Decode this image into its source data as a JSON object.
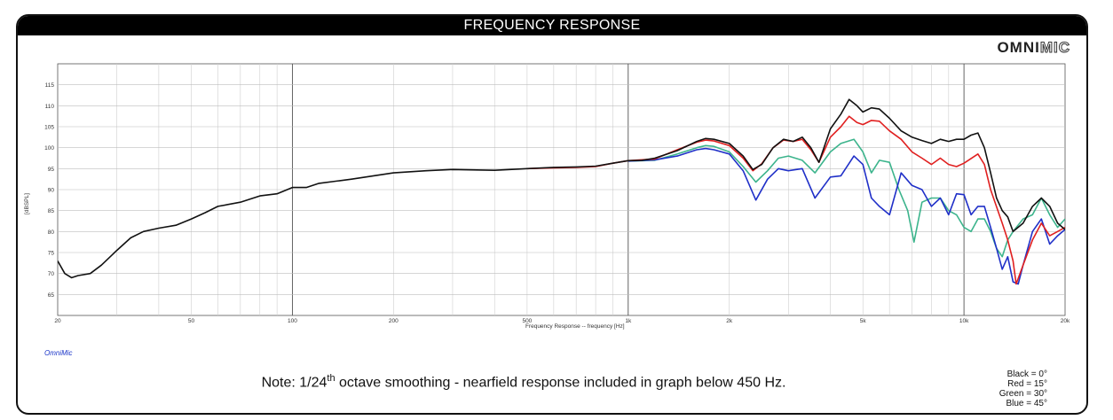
{
  "header": {
    "title": "FREQUENCY RESPONSE"
  },
  "logo": {
    "part_a": "OMNI",
    "part_b": "MIC"
  },
  "brand_label": "OmniMic",
  "note": {
    "pre": "Note: 1/24",
    "sup": "th",
    "post": " octave smoothing - nearfield response included in graph below 450 Hz."
  },
  "legend_lines": [
    "Black = 0°",
    "Red = 15°",
    "Green = 30°",
    "Blue = 45°"
  ],
  "colors": {
    "black": "#111111",
    "red": "#e02020",
    "green": "#3cb48c",
    "blue": "#2030c8"
  },
  "chart_data": {
    "type": "line",
    "title": "",
    "xlabel": "Frequency Response -- frequency [Hz]",
    "ylabel": "[dBSPL]",
    "x_scale": "log",
    "xlim": [
      20,
      20000
    ],
    "ylim": [
      60,
      120
    ],
    "grid": true,
    "x_ticks": [
      {
        "value": 20,
        "label": "20"
      },
      {
        "value": 50,
        "label": "50"
      },
      {
        "value": 100,
        "label": "100"
      },
      {
        "value": 200,
        "label": "200"
      },
      {
        "value": 500,
        "label": "500"
      },
      {
        "value": 1000,
        "label": "1k"
      },
      {
        "value": 2000,
        "label": "2k"
      },
      {
        "value": 5000,
        "label": "5k"
      },
      {
        "value": 10000,
        "label": "10k"
      },
      {
        "value": 20000,
        "label": "20k"
      }
    ],
    "y_ticks": [
      65,
      70,
      75,
      80,
      85,
      90,
      95,
      100,
      105,
      110,
      115
    ],
    "series": [
      {
        "name": "Black = 0°",
        "color": "#111111",
        "points": [
          [
            20,
            73
          ],
          [
            21,
            70
          ],
          [
            22,
            69
          ],
          [
            23,
            69.5
          ],
          [
            25,
            70
          ],
          [
            27,
            72
          ],
          [
            30,
            75.5
          ],
          [
            33,
            78.5
          ],
          [
            36,
            80
          ],
          [
            40,
            80.8
          ],
          [
            45,
            81.5
          ],
          [
            50,
            83
          ],
          [
            55,
            84.5
          ],
          [
            60,
            86
          ],
          [
            70,
            87
          ],
          [
            80,
            88.5
          ],
          [
            90,
            89
          ],
          [
            100,
            90.5
          ],
          [
            110,
            90.5
          ],
          [
            120,
            91.5
          ],
          [
            150,
            92.5
          ],
          [
            200,
            94
          ],
          [
            250,
            94.5
          ],
          [
            300,
            94.8
          ],
          [
            400,
            94.6
          ],
          [
            500,
            95
          ],
          [
            600,
            95.3
          ],
          [
            700,
            95.4
          ],
          [
            800,
            95.6
          ],
          [
            900,
            96.3
          ],
          [
            1000,
            96.9
          ],
          [
            1100,
            97
          ],
          [
            1200,
            97.5
          ],
          [
            1400,
            99.3
          ],
          [
            1600,
            101.5
          ],
          [
            1700,
            102.2
          ],
          [
            1800,
            102
          ],
          [
            2000,
            101
          ],
          [
            2200,
            98
          ],
          [
            2350,
            94.8
          ],
          [
            2500,
            96
          ],
          [
            2700,
            100
          ],
          [
            2900,
            102
          ],
          [
            3100,
            101.5
          ],
          [
            3300,
            102.5
          ],
          [
            3500,
            100
          ],
          [
            3700,
            96.5
          ],
          [
            4000,
            104.5
          ],
          [
            4300,
            108
          ],
          [
            4550,
            111.5
          ],
          [
            4800,
            110
          ],
          [
            5000,
            108.5
          ],
          [
            5300,
            109.5
          ],
          [
            5600,
            109.2
          ],
          [
            6000,
            107
          ],
          [
            6500,
            104
          ],
          [
            7000,
            102.5
          ],
          [
            7500,
            101.7
          ],
          [
            8000,
            101
          ],
          [
            8500,
            102
          ],
          [
            9000,
            101.5
          ],
          [
            9500,
            102
          ],
          [
            10000,
            102
          ],
          [
            10500,
            103
          ],
          [
            11000,
            103.5
          ],
          [
            11500,
            100
          ],
          [
            12000,
            94
          ],
          [
            12500,
            88
          ],
          [
            13000,
            85
          ],
          [
            13500,
            83.5
          ],
          [
            14000,
            80
          ],
          [
            15000,
            82
          ],
          [
            16000,
            86
          ],
          [
            17000,
            88
          ],
          [
            18000,
            86
          ],
          [
            19000,
            82
          ],
          [
            20000,
            80.5
          ]
        ]
      },
      {
        "name": "Red = 15°",
        "color": "#e02020",
        "points": [
          [
            500,
            95
          ],
          [
            600,
            95.2
          ],
          [
            700,
            95.3
          ],
          [
            800,
            95.5
          ],
          [
            900,
            96.3
          ],
          [
            1000,
            96.9
          ],
          [
            1200,
            97.3
          ],
          [
            1400,
            99.5
          ],
          [
            1600,
            101.3
          ],
          [
            1700,
            101.8
          ],
          [
            1800,
            101.6
          ],
          [
            2000,
            100.5
          ],
          [
            2200,
            97.5
          ],
          [
            2350,
            94.5
          ],
          [
            2500,
            96.2
          ],
          [
            2700,
            100
          ],
          [
            2900,
            101.8
          ],
          [
            3100,
            101.5
          ],
          [
            3300,
            102
          ],
          [
            3500,
            99.5
          ],
          [
            3700,
            96.5
          ],
          [
            4000,
            102.5
          ],
          [
            4300,
            105
          ],
          [
            4550,
            107.5
          ],
          [
            4800,
            106
          ],
          [
            5000,
            105.5
          ],
          [
            5300,
            106.5
          ],
          [
            5600,
            106.3
          ],
          [
            6000,
            104
          ],
          [
            6500,
            102
          ],
          [
            7000,
            99
          ],
          [
            7500,
            97.5
          ],
          [
            8000,
            96
          ],
          [
            8500,
            97.5
          ],
          [
            9000,
            96
          ],
          [
            9500,
            95.5
          ],
          [
            10000,
            96.3
          ],
          [
            11000,
            98.5
          ],
          [
            11500,
            96
          ],
          [
            12000,
            90
          ],
          [
            13000,
            82
          ],
          [
            13500,
            78
          ],
          [
            14000,
            73
          ],
          [
            14300,
            67.5
          ],
          [
            15000,
            72
          ],
          [
            16000,
            78
          ],
          [
            17000,
            82
          ],
          [
            18000,
            79
          ],
          [
            19000,
            80
          ],
          [
            20000,
            81
          ]
        ]
      },
      {
        "name": "Green = 30°",
        "color": "#3cb48c",
        "points": [
          [
            1000,
            96.8
          ],
          [
            1200,
            97
          ],
          [
            1400,
            98.5
          ],
          [
            1600,
            100
          ],
          [
            1700,
            100.5
          ],
          [
            1800,
            100.3
          ],
          [
            2000,
            99
          ],
          [
            2200,
            95.5
          ],
          [
            2400,
            91.8
          ],
          [
            2600,
            94.5
          ],
          [
            2800,
            97.5
          ],
          [
            3000,
            98
          ],
          [
            3300,
            97
          ],
          [
            3600,
            94
          ],
          [
            4000,
            99
          ],
          [
            4300,
            101
          ],
          [
            4700,
            102
          ],
          [
            5000,
            99
          ],
          [
            5300,
            94
          ],
          [
            5600,
            97
          ],
          [
            6000,
            96.5
          ],
          [
            6400,
            90
          ],
          [
            6800,
            85
          ],
          [
            7100,
            77.5
          ],
          [
            7500,
            87
          ],
          [
            8000,
            88
          ],
          [
            8500,
            88
          ],
          [
            9000,
            85
          ],
          [
            9500,
            84
          ],
          [
            10000,
            81
          ],
          [
            10500,
            80
          ],
          [
            11000,
            83
          ],
          [
            11500,
            83
          ],
          [
            12000,
            80
          ],
          [
            12500,
            76
          ],
          [
            13000,
            74
          ],
          [
            13500,
            78
          ],
          [
            14000,
            80
          ],
          [
            15000,
            83
          ],
          [
            16000,
            84
          ],
          [
            17000,
            88
          ],
          [
            18000,
            84
          ],
          [
            19000,
            81
          ],
          [
            20000,
            83
          ]
        ]
      },
      {
        "name": "Blue = 45°",
        "color": "#2030c8",
        "points": [
          [
            1000,
            96.8
          ],
          [
            1200,
            97.1
          ],
          [
            1400,
            98
          ],
          [
            1600,
            99.5
          ],
          [
            1700,
            99.8
          ],
          [
            1800,
            99.5
          ],
          [
            2000,
            98.5
          ],
          [
            2200,
            94.5
          ],
          [
            2400,
            87.5
          ],
          [
            2600,
            92.5
          ],
          [
            2800,
            95
          ],
          [
            3000,
            94.5
          ],
          [
            3300,
            95
          ],
          [
            3600,
            88
          ],
          [
            4000,
            93
          ],
          [
            4300,
            93.3
          ],
          [
            4700,
            98
          ],
          [
            5000,
            96
          ],
          [
            5300,
            88
          ],
          [
            5600,
            86
          ],
          [
            6000,
            84
          ],
          [
            6500,
            94
          ],
          [
            7000,
            91
          ],
          [
            7500,
            90
          ],
          [
            8000,
            86
          ],
          [
            8500,
            88
          ],
          [
            9000,
            84
          ],
          [
            9500,
            89
          ],
          [
            10000,
            88.8
          ],
          [
            10500,
            84
          ],
          [
            11000,
            86
          ],
          [
            11500,
            86
          ],
          [
            12000,
            81
          ],
          [
            12500,
            76
          ],
          [
            13000,
            71
          ],
          [
            13500,
            74
          ],
          [
            14000,
            68
          ],
          [
            14500,
            67.5
          ],
          [
            15000,
            72
          ],
          [
            16000,
            80
          ],
          [
            17000,
            83
          ],
          [
            18000,
            77
          ],
          [
            19000,
            79
          ],
          [
            20000,
            80.5
          ]
        ]
      }
    ]
  }
}
